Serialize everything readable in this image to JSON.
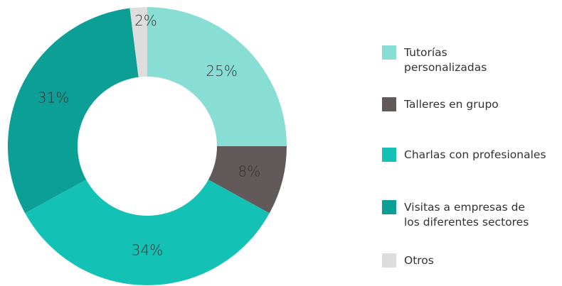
{
  "chart_data": {
    "type": "pie",
    "categories": [
      "Tutorías personalizadas",
      "Talleres en grupo",
      "Charlas con profesionales",
      "Visitas a empresas de los diferentes sectores",
      "Otros"
    ],
    "values": [
      25,
      8,
      34,
      31,
      2
    ],
    "value_labels": [
      "25%",
      "8%",
      "34%",
      "31%",
      "2%"
    ],
    "colors": [
      "#88ddd5",
      "#625a5a",
      "#14c1b5",
      "#0c9f96",
      "#dddddd"
    ],
    "donut": true,
    "legend": "right"
  }
}
